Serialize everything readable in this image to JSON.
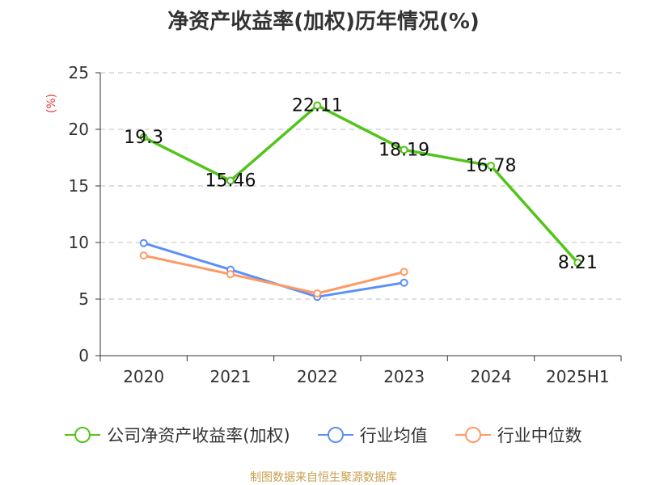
{
  "chart_data": {
    "type": "line",
    "title": "净资产收益率(加权)历年情况(%)",
    "ylabel": "(%)",
    "categories": [
      "2020",
      "2021",
      "2022",
      "2023",
      "2024",
      "2025H1"
    ],
    "ylim": [
      0,
      25
    ],
    "yticks": [
      0,
      5,
      10,
      15,
      20,
      25
    ],
    "grid": true,
    "legend_position": "bottom",
    "series": [
      {
        "name": "公司净资产收益率(加权)",
        "color": "#52c41a",
        "values": [
          19.3,
          15.46,
          22.11,
          18.19,
          16.78,
          8.21
        ],
        "labels": [
          "19.3",
          "15.46",
          "22.11",
          "18.19",
          "16.78",
          "8.21"
        ]
      },
      {
        "name": "行业均值",
        "color": "#5b8ff9",
        "values": [
          9.95,
          7.6,
          5.2,
          6.45,
          null,
          null
        ]
      },
      {
        "name": "行业中位数",
        "color": "#ff9966",
        "values": [
          8.85,
          7.2,
          5.5,
          7.4,
          null,
          null
        ]
      }
    ]
  },
  "footer": {
    "source": "制图数据来自恒生聚源数据库"
  }
}
